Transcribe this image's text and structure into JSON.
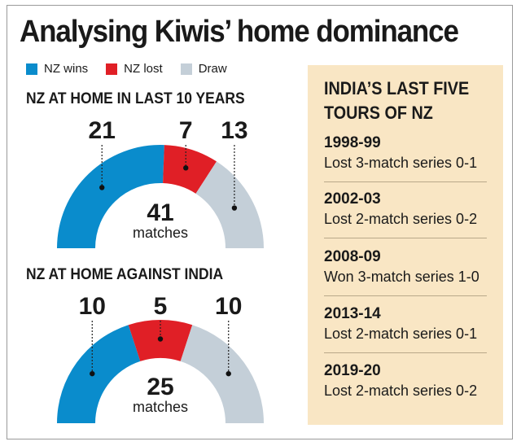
{
  "title": "Analysing Kiwis’ home dominance",
  "legend": [
    {
      "label": "NZ wins",
      "color": "#0a8ccc"
    },
    {
      "label": "NZ lost",
      "color": "#e01f26"
    },
    {
      "label": "Draw",
      "color": "#c4cfd8"
    }
  ],
  "chart_data": [
    {
      "type": "pie",
      "title": "NZ AT HOME IN LAST 10 YEARS",
      "categories": [
        "NZ wins",
        "NZ lost",
        "Draw"
      ],
      "values": [
        21,
        7,
        13
      ],
      "total": 41,
      "center_label": "matches"
    },
    {
      "type": "pie",
      "title": "NZ AT HOME AGAINST INDIA",
      "categories": [
        "NZ wins",
        "NZ lost",
        "Draw"
      ],
      "values": [
        10,
        5,
        10
      ],
      "total": 25,
      "center_label": "matches"
    }
  ],
  "sidebar": {
    "title": "INDIA’S LAST FIVE TOURS OF NZ",
    "tours": [
      {
        "year": "1998-99",
        "result": "Lost 3-match series 0-1"
      },
      {
        "year": "2002-03",
        "result": "Lost 2-match series 0-2"
      },
      {
        "year": "2008-09",
        "result": "Won 3-match series 1-0"
      },
      {
        "year": "2013-14",
        "result": "Lost 2-match series 0-1"
      },
      {
        "year": "2019-20",
        "result": "Lost 2-match series 0-2"
      }
    ]
  }
}
